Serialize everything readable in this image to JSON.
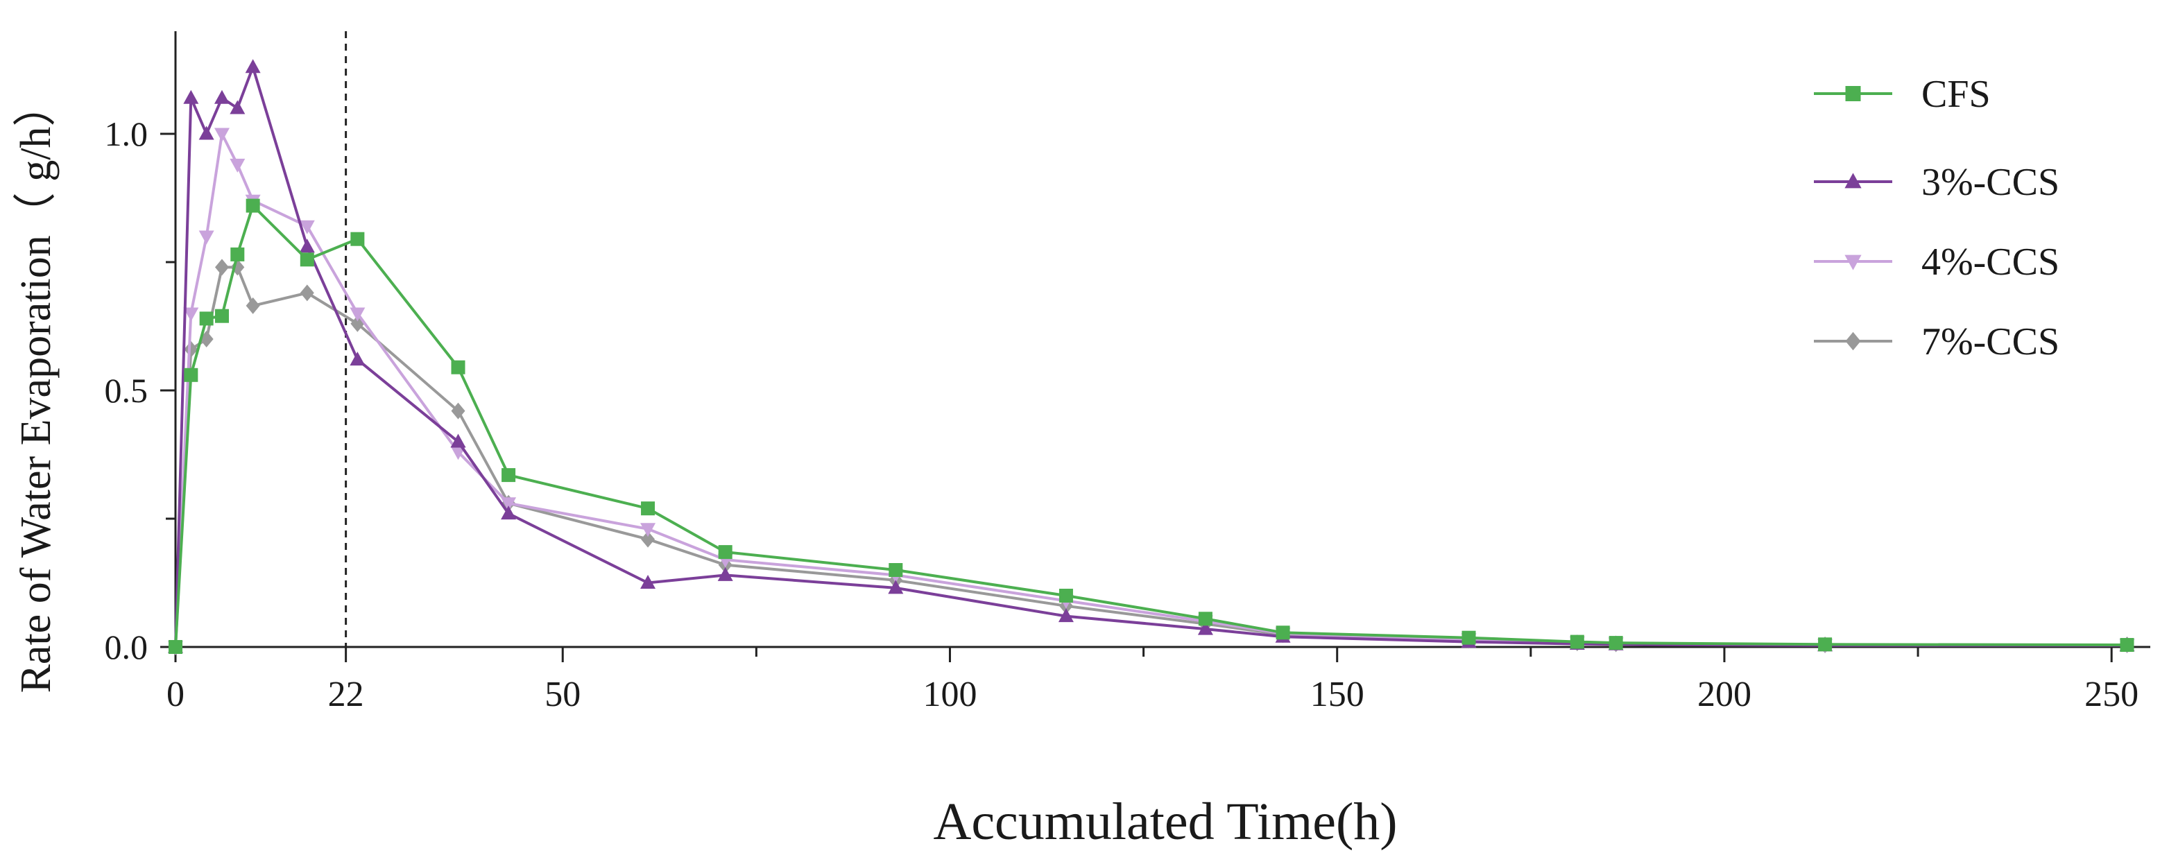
{
  "chart_data": {
    "type": "line",
    "xlabel": "Accumulated Time(h)",
    "ylabel": "Rate of Water Evaporation（ g/h）",
    "xlim": [
      0,
      255
    ],
    "ylim": [
      0,
      1.2
    ],
    "x_ticks": [
      0,
      22,
      50,
      100,
      150,
      200,
      250
    ],
    "x_minor_ticks": [
      75,
      125,
      175,
      225
    ],
    "y_ticks": [
      0.0,
      0.5,
      1.0
    ],
    "y_tick_labels": [
      "0.0",
      "0.5",
      "1.0"
    ],
    "y_minor_ticks": [
      0.25,
      0.75
    ],
    "reference_line": {
      "x": 22,
      "style": "dashed"
    },
    "grid": false,
    "legend_position": "top-right",
    "series": [
      {
        "name": "CFS",
        "color": "#4caf50",
        "marker": "square",
        "x": [
          0,
          2,
          4,
          6,
          8,
          10,
          17,
          23.5,
          36.5,
          43,
          61,
          71,
          93,
          115,
          133,
          143,
          167,
          181,
          186,
          213,
          252
        ],
        "y": [
          0,
          0.53,
          0.64,
          0.645,
          0.765,
          0.86,
          0.755,
          0.795,
          0.545,
          0.335,
          0.27,
          0.185,
          0.15,
          0.1,
          0.055,
          0.028,
          0.018,
          0.01,
          0.008,
          0.005,
          0.004
        ]
      },
      {
        "name": "3%-CCS",
        "color": "#7b3f99",
        "marker": "triangle-up",
        "x": [
          0,
          2,
          4,
          6,
          8,
          10,
          17,
          23.5,
          36.5,
          43,
          61,
          71,
          93,
          115,
          133,
          143,
          167,
          181,
          186,
          213,
          252
        ],
        "y": [
          0,
          1.07,
          1.0,
          1.07,
          1.05,
          1.13,
          0.78,
          0.56,
          0.4,
          0.26,
          0.125,
          0.14,
          0.115,
          0.06,
          0.035,
          0.02,
          0.01,
          0.006,
          0.005,
          0.003,
          0.003
        ]
      },
      {
        "name": "4%-CCS",
        "color": "#c9a3dc",
        "marker": "triangle-down",
        "x": [
          0,
          2,
          4,
          6,
          8,
          10,
          17,
          23.5,
          36.5,
          43,
          61,
          71,
          93,
          115,
          133,
          143,
          167,
          181,
          186,
          213,
          252
        ],
        "y": [
          0,
          0.65,
          0.8,
          1.0,
          0.94,
          0.87,
          0.82,
          0.65,
          0.38,
          0.28,
          0.23,
          0.17,
          0.14,
          0.09,
          0.05,
          0.026,
          0.015,
          0.009,
          0.007,
          0.004,
          0.004
        ]
      },
      {
        "name": "7%-CCS",
        "color": "#999999",
        "marker": "diamond",
        "x": [
          0,
          2,
          4,
          6,
          8,
          10,
          17,
          23.5,
          36.5,
          43,
          61,
          71,
          93,
          115,
          133,
          143,
          167,
          181,
          186,
          213,
          252
        ],
        "y": [
          0,
          0.58,
          0.6,
          0.74,
          0.74,
          0.665,
          0.69,
          0.63,
          0.46,
          0.28,
          0.21,
          0.16,
          0.13,
          0.08,
          0.045,
          0.024,
          0.013,
          0.008,
          0.006,
          0.004,
          0.004
        ]
      }
    ]
  }
}
